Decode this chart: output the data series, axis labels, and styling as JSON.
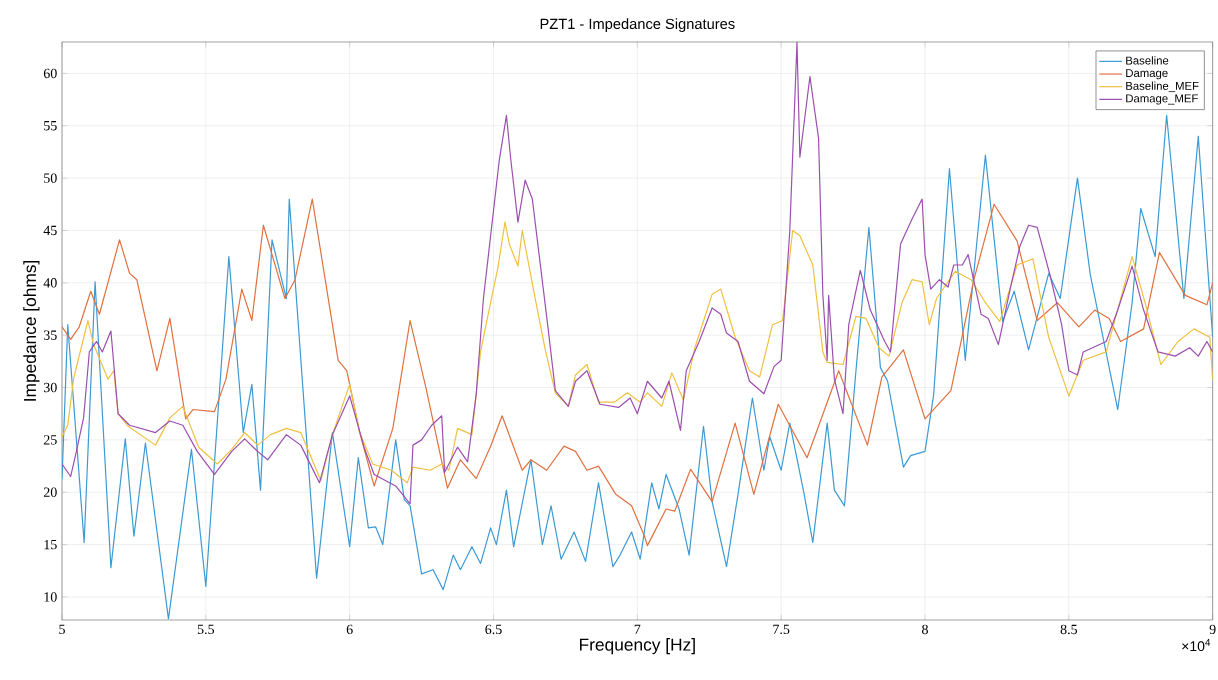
{
  "chart_data": {
    "type": "line",
    "title": "PZT1 - Impedance Signatures",
    "xlabel": "Frequency [Hz]",
    "ylabel": "Impedance [ohms]",
    "annotations": [
      "×10$^{4}$"
    ],
    "xlim": [
      5,
      9
    ],
    "ylim": [
      7.8,
      63
    ],
    "xticks": [
      5,
      5.5,
      6,
      6.5,
      7,
      7.5,
      8,
      8.5,
      9
    ],
    "yticks": [
      10,
      15,
      20,
      25,
      30,
      35,
      40,
      45,
      50,
      55,
      60
    ],
    "grid": true,
    "legend": "top right",
    "line_style": "solid",
    "series": [
      {
        "name": "Baseline",
        "color": "#3b9ad4",
        "x": [
          5.0,
          5.02,
          5.077,
          5.115,
          5.17,
          5.22,
          5.25,
          5.29,
          5.37,
          5.45,
          5.5,
          5.58,
          5.63,
          5.66,
          5.69,
          5.73,
          5.78,
          5.79,
          5.885,
          5.94,
          6.0,
          6.03,
          6.065,
          6.09,
          6.115,
          6.16,
          6.19,
          6.21,
          6.25,
          6.29,
          6.325,
          6.36,
          6.385,
          6.425,
          6.455,
          6.49,
          6.51,
          6.545,
          6.57,
          6.63,
          6.67,
          6.7,
          6.735,
          6.78,
          6.82,
          6.865,
          6.915,
          6.94,
          6.98,
          7.01,
          7.05,
          7.075,
          7.1,
          7.145,
          7.18,
          7.23,
          7.26,
          7.31,
          7.35,
          7.4,
          7.44,
          7.46,
          7.5,
          7.53,
          7.58,
          7.61,
          7.66,
          7.685,
          7.72,
          7.76,
          7.805,
          7.845,
          7.87,
          7.925,
          7.95,
          8.0,
          8.03,
          8.085,
          8.14,
          8.21,
          8.27,
          8.31,
          8.36,
          8.43,
          8.47,
          8.53,
          8.575,
          8.67,
          8.72,
          8.75,
          8.8,
          8.84,
          8.9,
          8.95,
          9.0
        ],
        "values": [
          21.3,
          36,
          15.2,
          40.1,
          12.8,
          25.1,
          15.8,
          24.7,
          7.9,
          24.1,
          11,
          42.5,
          25.7,
          30.3,
          20.2,
          44.1,
          38.5,
          48,
          11.8,
          25.7,
          14.8,
          23.3,
          16.6,
          16.7,
          15,
          25,
          19.3,
          18.7,
          12.2,
          12.6,
          10.7,
          14,
          12.6,
          14.8,
          13.2,
          16.6,
          15,
          20.2,
          14.8,
          23.1,
          15,
          18.7,
          13.6,
          16.2,
          13.4,
          20.9,
          12.9,
          14,
          16.2,
          13.6,
          20.9,
          18.4,
          21.7,
          18.4,
          14,
          26.3,
          19.1,
          12.9,
          19.8,
          29,
          22.1,
          25.3,
          22.1,
          26.6,
          19.8,
          15.2,
          26.6,
          20.2,
          18.7,
          31.6,
          45.3,
          31.9,
          30.6,
          22.4,
          23.5,
          23.9,
          29.3,
          50.9,
          32.6,
          52.2,
          36.3,
          39.2,
          33.6,
          40.9,
          38.5,
          50,
          40.7,
          27.9,
          38.1,
          47.1,
          42.5,
          56,
          38.5,
          54,
          34.8
        ]
      },
      {
        "name": "Damage",
        "color": "#e07040",
        "x": [
          5.0,
          5.03,
          5.06,
          5.1,
          5.13,
          5.2,
          5.235,
          5.26,
          5.33,
          5.375,
          5.43,
          5.455,
          5.53,
          5.57,
          5.625,
          5.66,
          5.7,
          5.775,
          5.81,
          5.87,
          5.96,
          5.99,
          6.035,
          6.085,
          6.15,
          6.21,
          6.265,
          6.34,
          6.385,
          6.44,
          6.49,
          6.53,
          6.6,
          6.63,
          6.685,
          6.745,
          6.785,
          6.825,
          6.865,
          6.925,
          6.98,
          7.025,
          7.035,
          7.1,
          7.13,
          7.185,
          7.26,
          7.34,
          7.405,
          7.49,
          7.59,
          7.7,
          7.8,
          7.85,
          7.925,
          8.0,
          8.09,
          8.17,
          8.24,
          8.32,
          8.39,
          8.46,
          8.535,
          8.59,
          8.64,
          8.68,
          8.76,
          8.815,
          8.905,
          8.98,
          9.0
        ],
        "values": [
          35.8,
          34.6,
          35.8,
          39.2,
          37,
          44.1,
          40.9,
          40.3,
          31.6,
          36.6,
          27,
          27.9,
          27.7,
          30.8,
          39.4,
          36.4,
          45.5,
          38.5,
          40.3,
          48,
          32.6,
          31.6,
          25.7,
          20.6,
          26.1,
          36.4,
          30,
          20.4,
          23.1,
          21.3,
          24.4,
          27.3,
          22.1,
          23.1,
          22.1,
          24.4,
          23.9,
          22.1,
          22.5,
          19.8,
          18.7,
          15.8,
          14.9,
          18.4,
          18.2,
          22.2,
          19.1,
          26.6,
          19.8,
          28.4,
          23.3,
          31.6,
          24.5,
          31,
          33.6,
          27,
          29.7,
          40.3,
          47.5,
          44,
          36.4,
          38.1,
          35.8,
          37.4,
          36.6,
          34.4,
          35.6,
          42.9,
          38.8,
          37.9,
          40
        ]
      },
      {
        "name": "Baseline_MEF",
        "color": "#f0c040",
        "x": [
          5.0,
          5.02,
          5.04,
          5.09,
          5.11,
          5.16,
          5.18,
          5.195,
          5.23,
          5.325,
          5.375,
          5.42,
          5.475,
          5.54,
          5.59,
          5.635,
          5.68,
          5.725,
          5.78,
          5.83,
          5.9,
          5.94,
          6.0,
          6.035,
          6.08,
          6.145,
          6.2,
          6.22,
          6.28,
          6.32,
          6.345,
          6.375,
          6.425,
          6.455,
          6.48,
          6.515,
          6.54,
          6.555,
          6.585,
          6.6,
          6.645,
          6.68,
          6.715,
          6.76,
          6.785,
          6.825,
          6.865,
          6.92,
          6.965,
          7.01,
          7.035,
          7.085,
          7.12,
          7.16,
          7.2,
          7.26,
          7.29,
          7.34,
          7.39,
          7.425,
          7.47,
          7.505,
          7.54,
          7.565,
          7.61,
          7.645,
          7.66,
          7.715,
          7.76,
          7.795,
          7.84,
          7.875,
          7.92,
          7.955,
          7.99,
          8.015,
          8.04,
          8.105,
          8.16,
          8.21,
          8.26,
          8.32,
          8.375,
          8.43,
          8.5,
          8.55,
          8.63,
          8.72,
          8.765,
          8.82,
          8.88,
          8.935,
          8.99,
          9.0
        ],
        "values": [
          25.3,
          26.4,
          30.8,
          36.4,
          34.1,
          30.8,
          31.6,
          27.5,
          26.3,
          24.5,
          27.1,
          28.2,
          24.3,
          22.7,
          24.1,
          25.7,
          24.5,
          25.5,
          26.1,
          25.7,
          21.1,
          25.5,
          30.3,
          25.7,
          22.7,
          22.1,
          20.9,
          22.4,
          22.1,
          22.7,
          22.1,
          26.1,
          25.5,
          33.4,
          36.8,
          41.4,
          45.8,
          43.7,
          41.6,
          45,
          38.5,
          33.6,
          29.5,
          28.2,
          31.2,
          32.2,
          28.6,
          28.6,
          29.5,
          28.6,
          29.5,
          28.2,
          31.4,
          28.8,
          33.8,
          38.9,
          39.4,
          34.8,
          31.6,
          31,
          36,
          36.4,
          45,
          44.5,
          41.7,
          33.4,
          32.4,
          32.2,
          36.8,
          36.6,
          33.8,
          33,
          38.1,
          40.3,
          40.1,
          36,
          38.5,
          41.1,
          40.3,
          38.1,
          36.3,
          41.7,
          42.3,
          34.8,
          29.2,
          32.6,
          33.4,
          42.5,
          38.1,
          32.2,
          34.4,
          35.6,
          34.8,
          30.8
        ]
      },
      {
        "name": "Damage_MEF",
        "color": "#9c4fb0",
        "x": [
          5.0,
          5.03,
          5.05,
          5.075,
          5.095,
          5.12,
          5.14,
          5.17,
          5.195,
          5.235,
          5.325,
          5.375,
          5.42,
          5.47,
          5.53,
          5.59,
          5.635,
          5.68,
          5.715,
          5.78,
          5.83,
          5.895,
          5.94,
          6.0,
          6.05,
          6.085,
          6.16,
          6.21,
          6.22,
          6.25,
          6.285,
          6.32,
          6.33,
          6.375,
          6.41,
          6.44,
          6.465,
          6.5,
          6.52,
          6.545,
          6.56,
          6.585,
          6.61,
          6.635,
          6.69,
          6.715,
          6.76,
          6.785,
          6.825,
          6.87,
          6.935,
          6.975,
          7.0,
          7.035,
          7.085,
          7.11,
          7.15,
          7.17,
          7.215,
          7.26,
          7.29,
          7.31,
          7.35,
          7.39,
          7.44,
          7.475,
          7.5,
          7.53,
          7.555,
          7.565,
          7.6,
          7.63,
          7.645,
          7.66,
          7.665,
          7.685,
          7.715,
          7.735,
          7.775,
          7.81,
          7.86,
          7.88,
          7.915,
          7.955,
          7.99,
          8.0,
          8.02,
          8.05,
          8.08,
          8.1,
          8.13,
          8.15,
          8.195,
          8.22,
          8.255,
          8.3,
          8.33,
          8.36,
          8.39,
          8.435,
          8.475,
          8.5,
          8.53,
          8.55,
          8.63,
          8.67,
          8.72,
          8.76,
          8.81,
          8.87,
          8.92,
          8.95,
          8.98,
          9.0
        ],
        "values": [
          22.7,
          21.5,
          23.9,
          27.1,
          33.4,
          34.4,
          33.4,
          35.4,
          27.5,
          26.4,
          25.7,
          26.8,
          26.4,
          23.9,
          21.7,
          23.9,
          25.1,
          23.9,
          23.1,
          25.5,
          24.5,
          20.9,
          25.5,
          29.2,
          24.3,
          21.7,
          20.6,
          18.9,
          24.5,
          25,
          26.4,
          27.3,
          21.9,
          24.3,
          22.9,
          29.4,
          38.5,
          46.9,
          51.7,
          56,
          51.8,
          45.8,
          49.8,
          48,
          35.6,
          29.7,
          28.2,
          30.6,
          31.6,
          28.4,
          28.1,
          29,
          27.5,
          30.6,
          29,
          30.6,
          25.9,
          31.6,
          34.4,
          37.6,
          37,
          35.2,
          34.4,
          30.6,
          29.4,
          32,
          32.6,
          45,
          63,
          52,
          59.7,
          53.8,
          38.8,
          32.6,
          38.8,
          30.8,
          27.5,
          36,
          41.2,
          37.4,
          34.4,
          33.4,
          43.7,
          46.1,
          48,
          42.7,
          39.4,
          40.3,
          39.6,
          41.7,
          41.7,
          42.7,
          37,
          36.6,
          34.1,
          39.9,
          43.5,
          45.5,
          45.3,
          40.7,
          36,
          31.6,
          31.2,
          33.4,
          34.4,
          37.4,
          41.6,
          37.4,
          33.4,
          33,
          33.8,
          33,
          34.4,
          33.4
        ]
      }
    ]
  }
}
